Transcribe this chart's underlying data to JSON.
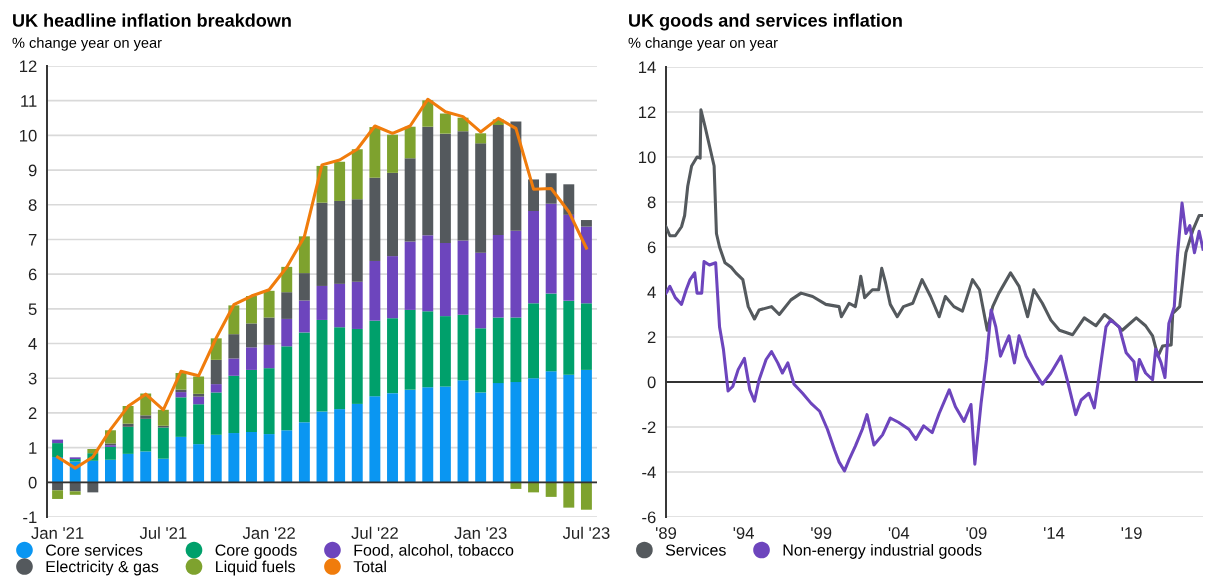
{
  "chart_data": [
    {
      "type": "bar",
      "title": "UK headline inflation breakdown",
      "subtitle": "% change year on year",
      "stacked": true,
      "categories": [
        "Jan '21",
        null,
        null,
        null,
        null,
        null,
        "Jul '21",
        null,
        null,
        null,
        null,
        null,
        "Jan '22",
        null,
        null,
        null,
        null,
        null,
        "Jul '22",
        null,
        null,
        null,
        null,
        null,
        "Jan '23",
        null,
        null,
        null,
        null,
        null,
        "Jul '23"
      ],
      "series": [
        {
          "name": "Core services",
          "color": "#0a96f2",
          "values": [
            0.73,
            0.6,
            0.62,
            0.65,
            0.82,
            0.89,
            0.68,
            1.31,
            1.1,
            1.37,
            1.42,
            1.45,
            1.39,
            1.5,
            1.73,
            2.04,
            2.11,
            2.26,
            2.48,
            2.57,
            2.67,
            2.74,
            2.76,
            2.94,
            2.59,
            2.86,
            2.89,
            3.0,
            3.2,
            3.1,
            3.24
          ]
        },
        {
          "name": "Core goods",
          "color": "#00a06b",
          "values": [
            0.4,
            0.07,
            0.22,
            0.37,
            0.78,
            0.94,
            0.9,
            1.14,
            1.15,
            1.22,
            1.65,
            1.79,
            1.9,
            2.42,
            2.59,
            2.64,
            2.36,
            2.16,
            2.18,
            2.16,
            2.3,
            2.19,
            2.03,
            1.89,
            1.85,
            1.89,
            1.86,
            2.16,
            2.24,
            2.13,
            1.92
          ]
        },
        {
          "name": "Food, alcohol, tobacco",
          "color": "#6d45bd",
          "values": [
            0.1,
            0.05,
            0,
            0.05,
            0,
            0,
            0,
            0.15,
            0.22,
            0.24,
            0.5,
            0.65,
            0.67,
            0.79,
            0.92,
            0.98,
            1.25,
            1.36,
            1.72,
            1.79,
            1.97,
            2.19,
            2.11,
            2.14,
            2.18,
            2.38,
            2.5,
            2.66,
            2.59,
            2.48,
            2.21
          ]
        },
        {
          "name": "Electricity & gas",
          "color": "#54595d",
          "values": [
            -0.23,
            -0.26,
            -0.29,
            0.05,
            0.09,
            0.1,
            0.05,
            0.07,
            0.08,
            0.7,
            0.7,
            0.69,
            0.79,
            0.77,
            0.79,
            2.4,
            2.39,
            2.38,
            2.4,
            2.4,
            2.4,
            3.13,
            3.15,
            3.15,
            3.15,
            3.17,
            3.15,
            0.91,
            0.88,
            0.88,
            0.19
          ]
        },
        {
          "name": "Liquid fuels",
          "color": "#7ea22e",
          "values": [
            -0.25,
            -0.1,
            0.12,
            0.38,
            0.51,
            0.63,
            0.46,
            0.48,
            0.5,
            0.62,
            0.83,
            0.79,
            0.77,
            0.73,
            1.06,
            1.06,
            1.13,
            1.44,
            1.46,
            1.1,
            0.91,
            0.76,
            0.58,
            0.39,
            0.29,
            0.16,
            -0.19,
            -0.29,
            -0.42,
            -0.73,
            -0.79
          ]
        },
        {
          "name": "Total",
          "type": "line",
          "color": "#f07c0c",
          "values": [
            0.73,
            0.41,
            0.73,
            1.52,
            2.19,
            2.54,
            2.09,
            3.2,
            3.07,
            4.16,
            5.12,
            5.37,
            5.55,
            6.2,
            7.08,
            9.15,
            9.29,
            9.6,
            10.27,
            10.06,
            10.27,
            11.04,
            10.68,
            10.54,
            10.1,
            10.49,
            10.2,
            8.45,
            8.47,
            7.8,
            6.75
          ]
        }
      ],
      "ylim": [
        -1,
        12
      ],
      "yticks": [
        -1,
        0,
        1,
        2,
        3,
        4,
        5,
        6,
        7,
        8,
        9,
        10,
        11,
        12
      ],
      "grid": "y",
      "legend": "bottom",
      "ref_lines": [
        {
          "axis": "y",
          "value": 0,
          "color": "#333333"
        }
      ]
    },
    {
      "type": "line",
      "title": "UK goods and services inflation",
      "subtitle": "% change year on year",
      "series": [
        {
          "name": "Services",
          "color": "#54595d",
          "x": [
            1989.0,
            1989.25,
            1989.6,
            1990.0,
            1990.2,
            1990.4,
            1990.65,
            1991.0,
            1991.2,
            1991.25,
            1991.5,
            1991.8,
            1992.1,
            1992.25,
            1992.45,
            1992.8,
            1993.2,
            1993.5,
            1993.95,
            1994.3,
            1994.7,
            1995.0,
            1995.8,
            1996.3,
            1997.05,
            1997.7,
            1998.45,
            1999.3,
            2000.15,
            2000.3,
            2000.8,
            2001.2,
            2001.45,
            2001.55,
            2001.8,
            2002.3,
            2002.7,
            2002.9,
            2003.15,
            2003.45,
            2003.9,
            2004.3,
            2004.9,
            2005.5,
            2006.05,
            2006.6,
            2007.0,
            2007.55,
            2008.1,
            2008.75,
            2009.2,
            2009.7,
            2010.05,
            2010.45,
            2011.2,
            2011.75,
            2012.3,
            2012.7,
            2013.25,
            2013.8,
            2014.35,
            2015.2,
            2015.95,
            2016.7,
            2017.25,
            2017.8,
            2018.4,
            2019.3,
            2019.9,
            2020.35,
            2020.7,
            2021.0,
            2021.55,
            2021.65,
            2022.1,
            2022.5,
            2022.95,
            2023.35,
            2023.6
          ],
          "values": [
            6.9,
            6.5,
            6.5,
            6.9,
            7.4,
            8.7,
            9.6,
            10.0,
            9.95,
            12.1,
            11.4,
            10.5,
            9.6,
            6.6,
            6.0,
            5.3,
            5.1,
            4.85,
            4.55,
            3.35,
            2.8,
            3.2,
            3.35,
            3.0,
            3.65,
            3.95,
            3.8,
            3.45,
            3.35,
            2.9,
            3.5,
            3.35,
            4.25,
            4.7,
            3.75,
            4.1,
            4.1,
            5.05,
            4.4,
            3.45,
            2.9,
            3.35,
            3.5,
            4.55,
            3.8,
            2.9,
            3.8,
            3.35,
            3.15,
            4.55,
            4.1,
            2.3,
            3.35,
            3.95,
            4.85,
            4.25,
            2.9,
            4.1,
            3.5,
            2.75,
            2.3,
            2.1,
            2.85,
            2.5,
            3.0,
            2.7,
            2.3,
            2.85,
            2.5,
            2.05,
            1.15,
            1.6,
            1.65,
            3.05,
            3.35,
            5.75,
            6.75,
            7.4,
            7.4
          ]
        },
        {
          "name": "Non-energy industrial goods",
          "color": "#6d45bd",
          "x": [
            1989.0,
            1989.25,
            1989.6,
            1990.0,
            1990.3,
            1990.55,
            1990.85,
            1991.0,
            1991.3,
            1991.45,
            1991.8,
            1992.2,
            1992.45,
            1992.7,
            1993.0,
            1993.3,
            1993.65,
            1994.05,
            1994.4,
            1994.7,
            1995.0,
            1995.45,
            1995.8,
            1996.2,
            1996.5,
            1996.85,
            1997.25,
            1997.8,
            1998.35,
            1998.9,
            1999.4,
            1999.85,
            2000.15,
            2000.5,
            2000.8,
            2001.2,
            2001.65,
            2001.95,
            2002.4,
            2002.95,
            2003.45,
            2004.0,
            2004.65,
            2005.1,
            2005.6,
            2006.15,
            2006.6,
            2007.25,
            2007.65,
            2008.2,
            2008.65,
            2008.9,
            2009.3,
            2009.65,
            2009.95,
            2010.25,
            2010.55,
            2011.1,
            2011.45,
            2011.75,
            2012.2,
            2012.8,
            2013.25,
            2013.8,
            2014.45,
            2014.85,
            2015.4,
            2015.75,
            2016.25,
            2016.6,
            2016.9,
            2017.35,
            2017.65,
            2018.2,
            2018.65,
            2019.15,
            2019.3,
            2019.5,
            2019.9,
            2020.35,
            2020.55,
            2020.9,
            2021.15,
            2021.4,
            2021.75,
            2021.95,
            2022.25,
            2022.5,
            2022.75,
            2023.05,
            2023.35,
            2023.6
          ],
          "values": [
            3.95,
            4.25,
            3.75,
            3.45,
            4.1,
            4.55,
            4.85,
            3.95,
            3.95,
            5.35,
            5.2,
            5.3,
            2.45,
            1.45,
            -0.4,
            -0.2,
            0.55,
            1.05,
            -0.35,
            -0.85,
            0.1,
            1.0,
            1.35,
            0.85,
            0.4,
            0.85,
            -0.1,
            -0.5,
            -0.95,
            -1.3,
            -2.1,
            -3.0,
            -3.55,
            -3.95,
            -3.45,
            -2.85,
            -2.1,
            -1.45,
            -2.8,
            -2.35,
            -1.6,
            -1.8,
            -2.1,
            -2.55,
            -1.95,
            -2.25,
            -1.4,
            -0.35,
            -1.1,
            -1.75,
            -1.0,
            -3.65,
            -0.95,
            1.0,
            3.2,
            2.45,
            1.15,
            2.05,
            0.85,
            2.05,
            1.15,
            0.4,
            -0.1,
            0.4,
            1.15,
            0.1,
            -1.45,
            -0.8,
            -0.5,
            -1.15,
            0.25,
            2.45,
            2.75,
            2.45,
            1.3,
            0.9,
            0.1,
            1.0,
            0.4,
            0.1,
            1.45,
            0.85,
            0.2,
            2.6,
            3.35,
            5.6,
            7.95,
            6.6,
            6.95,
            5.75,
            6.7,
            5.9
          ]
        }
      ],
      "xlim": [
        1989,
        2023.6
      ],
      "xticks": [
        {
          "value": 1989,
          "label": "'89"
        },
        {
          "value": 1994,
          "label": "'94"
        },
        {
          "value": 1999,
          "label": "'99"
        },
        {
          "value": 2004,
          "label": "'04"
        },
        {
          "value": 2009,
          "label": "'09"
        },
        {
          "value": 2014,
          "label": "'14"
        },
        {
          "value": 2019,
          "label": "'19"
        }
      ],
      "ylim": [
        -6,
        14
      ],
      "yticks": [
        -6,
        -4,
        -2,
        0,
        2,
        4,
        6,
        8,
        10,
        12,
        14
      ],
      "grid": "y",
      "legend": "bottom",
      "ref_lines": [
        {
          "axis": "y",
          "value": 0,
          "color": "#333333"
        }
      ]
    }
  ]
}
